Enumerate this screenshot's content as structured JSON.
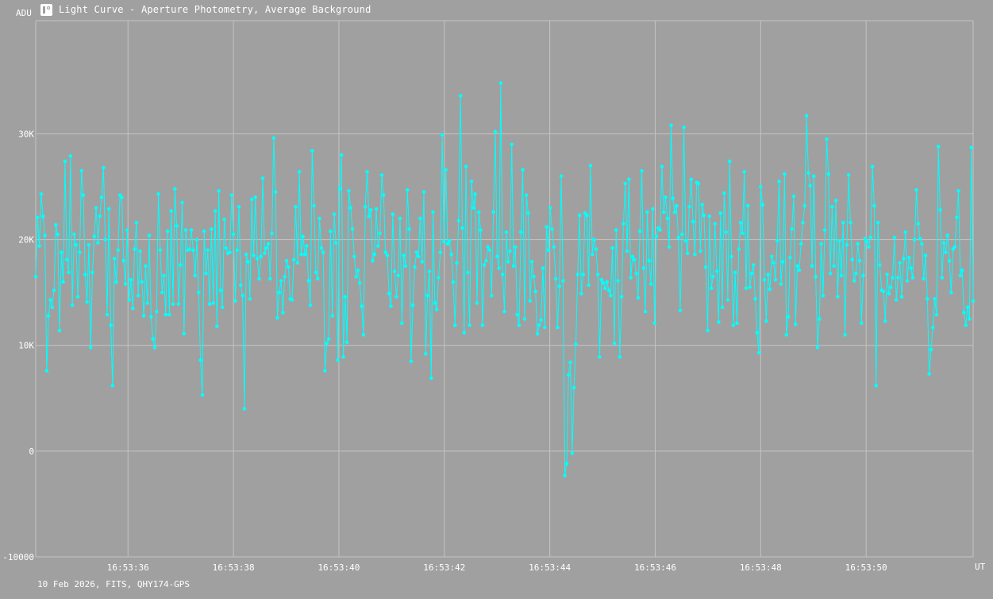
{
  "window": {
    "title": "Light Curve - Aperture Photometry, Average Background",
    "icon": "light-curve-app-icon"
  },
  "footer_text": "10 Feb 2026, FITS, QHY174-GPS",
  "colors": {
    "background": "#a0a0a0",
    "grid": "#c4c4c4",
    "series": "#00ffff",
    "text": "#ffffff"
  },
  "chart_data": {
    "type": "line",
    "title": "Light Curve - Aperture Photometry, Average Background",
    "xlabel": "UT",
    "ylabel": "ADU",
    "ylim": [
      -10000,
      40700
    ],
    "xlim_seconds_after_16_53": [
      34.25,
      52.03
    ],
    "y_ticks": [
      {
        "value": -10000,
        "label": "-10000"
      },
      {
        "value": 0,
        "label": "0"
      },
      {
        "value": 10000,
        "label": "10K"
      },
      {
        "value": 20000,
        "label": "20K"
      },
      {
        "value": 30000,
        "label": "30K"
      }
    ],
    "x_ticks": [
      {
        "seconds": 36,
        "label": "16:53:36"
      },
      {
        "seconds": 38,
        "label": "16:53:38"
      },
      {
        "seconds": 40,
        "label": "16:53:40"
      },
      {
        "seconds": 42,
        "label": "16:53:42"
      },
      {
        "seconds": 44,
        "label": "16:53:44"
      },
      {
        "seconds": 46,
        "label": "16:53:46"
      },
      {
        "seconds": 48,
        "label": "16:53:48"
      },
      {
        "seconds": 50,
        "label": "16:53:50"
      }
    ],
    "grid": true,
    "markers": true,
    "series": [
      {
        "x_start_seconds": 34.25,
        "x_end_seconds": 52.03,
        "values": [
          16500,
          22100,
          19400,
          24300,
          22200,
          20400,
          7600,
          12800,
          14300,
          13600,
          15200,
          21400,
          20500,
          11400,
          18800,
          16000,
          27400,
          18100,
          16900,
          27900,
          13800,
          20500,
          19500,
          14600,
          18800,
          26500,
          24200,
          16700,
          14100,
          19500,
          9800,
          16900,
          20300,
          23000,
          19700,
          22200,
          24000,
          26800,
          20000,
          12900,
          22900,
          11900,
          6200,
          18200,
          16000,
          19000,
          24200,
          24000,
          18000,
          15800,
          20900,
          14300,
          16200,
          13500,
          19100,
          21600,
          14700,
          18900,
          16000,
          12800,
          17500,
          14000,
          20400,
          12700,
          10600,
          9800,
          13200,
          24300,
          19000,
          15000,
          16600,
          12900,
          20800,
          12900,
          22700,
          13900,
          24800,
          21300,
          13900,
          17600,
          23500,
          11100,
          20900,
          19000,
          19100,
          20900,
          19000,
          16600,
          20000,
          15000,
          8600,
          5300,
          20800,
          16800,
          19000,
          13900,
          21000,
          14000,
          22700,
          11800,
          24600,
          15200,
          13600,
          21900,
          19200,
          18700,
          18800,
          24200,
          20500,
          14200,
          19000,
          23100,
          15700,
          14700,
          4000,
          18600,
          17900,
          14400,
          23800,
          18500,
          24000,
          18200,
          16300,
          18400,
          25800,
          18700,
          19200,
          19600,
          16300,
          20600,
          29600,
          24500,
          12600,
          15000,
          16100,
          13100,
          16500,
          18000,
          17400,
          14400,
          14300,
          18100,
          23100,
          17800,
          26400,
          18600,
          20300,
          18600,
          19400,
          16100,
          13800,
          28400,
          23200,
          16900,
          16300,
          22000,
          19200,
          18800,
          7600,
          10200,
          10600,
          20800,
          12800,
          22400,
          19700,
          8600,
          24800,
          28000,
          8900,
          14600,
          10300,
          24600,
          23000,
          21000,
          18400,
          16500,
          17100,
          15900,
          13700,
          11000,
          23100,
          26400,
          22200,
          22800,
          18000,
          18600,
          22900,
          19400,
          20600,
          26100,
          24200,
          18800,
          18500,
          14900,
          13700,
          22400,
          17000,
          14600,
          16600,
          22000,
          12100,
          18500,
          17500,
          24700,
          21000,
          8500,
          13800,
          17400,
          18800,
          18400,
          22000,
          17900,
          24500,
          9200,
          14700,
          17000,
          6900,
          22600,
          14000,
          13400,
          16400,
          18800,
          29900,
          19800,
          26600,
          19600,
          19900,
          18600,
          16000,
          11900,
          17800,
          21800,
          33600,
          21100,
          11200,
          26900,
          16900,
          11900,
          25500,
          23000,
          24300,
          14000,
          22600,
          20900,
          11900,
          17600,
          18000,
          19300,
          19000,
          14700,
          22600,
          30200,
          18400,
          17300,
          34800,
          16700,
          13200,
          20700,
          17900,
          18900,
          29000,
          17500,
          19300,
          12900,
          11900,
          20700,
          26600,
          12500,
          24200,
          22500,
          14200,
          17900,
          16500,
          15100,
          11100,
          11900,
          12400,
          17300,
          11700,
          21200,
          19000,
          23000,
          21000,
          19300,
          16300,
          11700,
          15600,
          26000,
          16100,
          -2300,
          -1200,
          7200,
          8400,
          -200,
          6000,
          10100,
          16700,
          22300,
          14900,
          16700,
          22500,
          22300,
          15700,
          27000,
          18600,
          20000,
          19100,
          16700,
          8900,
          16200,
          15900,
          15400,
          16000,
          15200,
          14700,
          19200,
          10200,
          20900,
          16100,
          8900,
          14600,
          21500,
          25300,
          18900,
          25700,
          16400,
          18400,
          18100,
          16800,
          14500,
          20800,
          26500,
          17300,
          13200,
          22600,
          18000,
          15800,
          22900,
          12100,
          20300,
          21100,
          20900,
          26900,
          22600,
          24000,
          22000,
          19300,
          30800,
          23900,
          22600,
          23200,
          20200,
          13300,
          20500,
          30600,
          19900,
          18700,
          23100,
          25700,
          21700,
          18600,
          25400,
          25300,
          18900,
          23300,
          22300,
          17400,
          11400,
          22200,
          15400,
          16500,
          21500,
          17000,
          12200,
          22500,
          13600,
          24400,
          20700,
          14300,
          27400,
          18400,
          11900,
          16900,
          12100,
          19100,
          21600,
          20600,
          26400,
          15400,
          23200,
          15500,
          16800,
          17600,
          14400,
          11200,
          9300,
          25000,
          23300,
          16200,
          12300,
          16700,
          15300,
          18400,
          17800,
          16200,
          19900,
          25500,
          15800,
          17900,
          26200,
          11000,
          12700,
          18300,
          21000,
          24100,
          12000,
          17500,
          17100,
          19600,
          21600,
          23200,
          31700,
          26300,
          25100,
          17500,
          26000,
          16500,
          9800,
          12500,
          19600,
          14700,
          20900,
          29500,
          26200,
          16800,
          23100,
          17500,
          23700,
          14600,
          19900,
          16600,
          21600,
          11000,
          19500,
          26100,
          21600,
          18100,
          16100,
          16800,
          19600,
          18000,
          12100,
          16600,
          20100,
          19800,
          19300,
          20200,
          26900,
          23200,
          6200,
          21600,
          17600,
          15200,
          15100,
          12300,
          16700,
          14900,
          15500,
          16400,
          20200,
          14300,
          16400,
          17800,
          14600,
          18200,
          20700,
          16100,
          18300,
          17300,
          16400,
          20000,
          24700,
          21500,
          20100,
          19600,
          16300,
          18500,
          14400,
          7300,
          9600,
          11700,
          14400,
          12900,
          28800,
          22800,
          16400,
          19700,
          18800,
          20400,
          18000,
          15000,
          19100,
          19300,
          22100,
          24600,
          16600,
          17100,
          13100,
          11900,
          13600,
          12500,
          28700,
          14200
        ]
      }
    ]
  }
}
